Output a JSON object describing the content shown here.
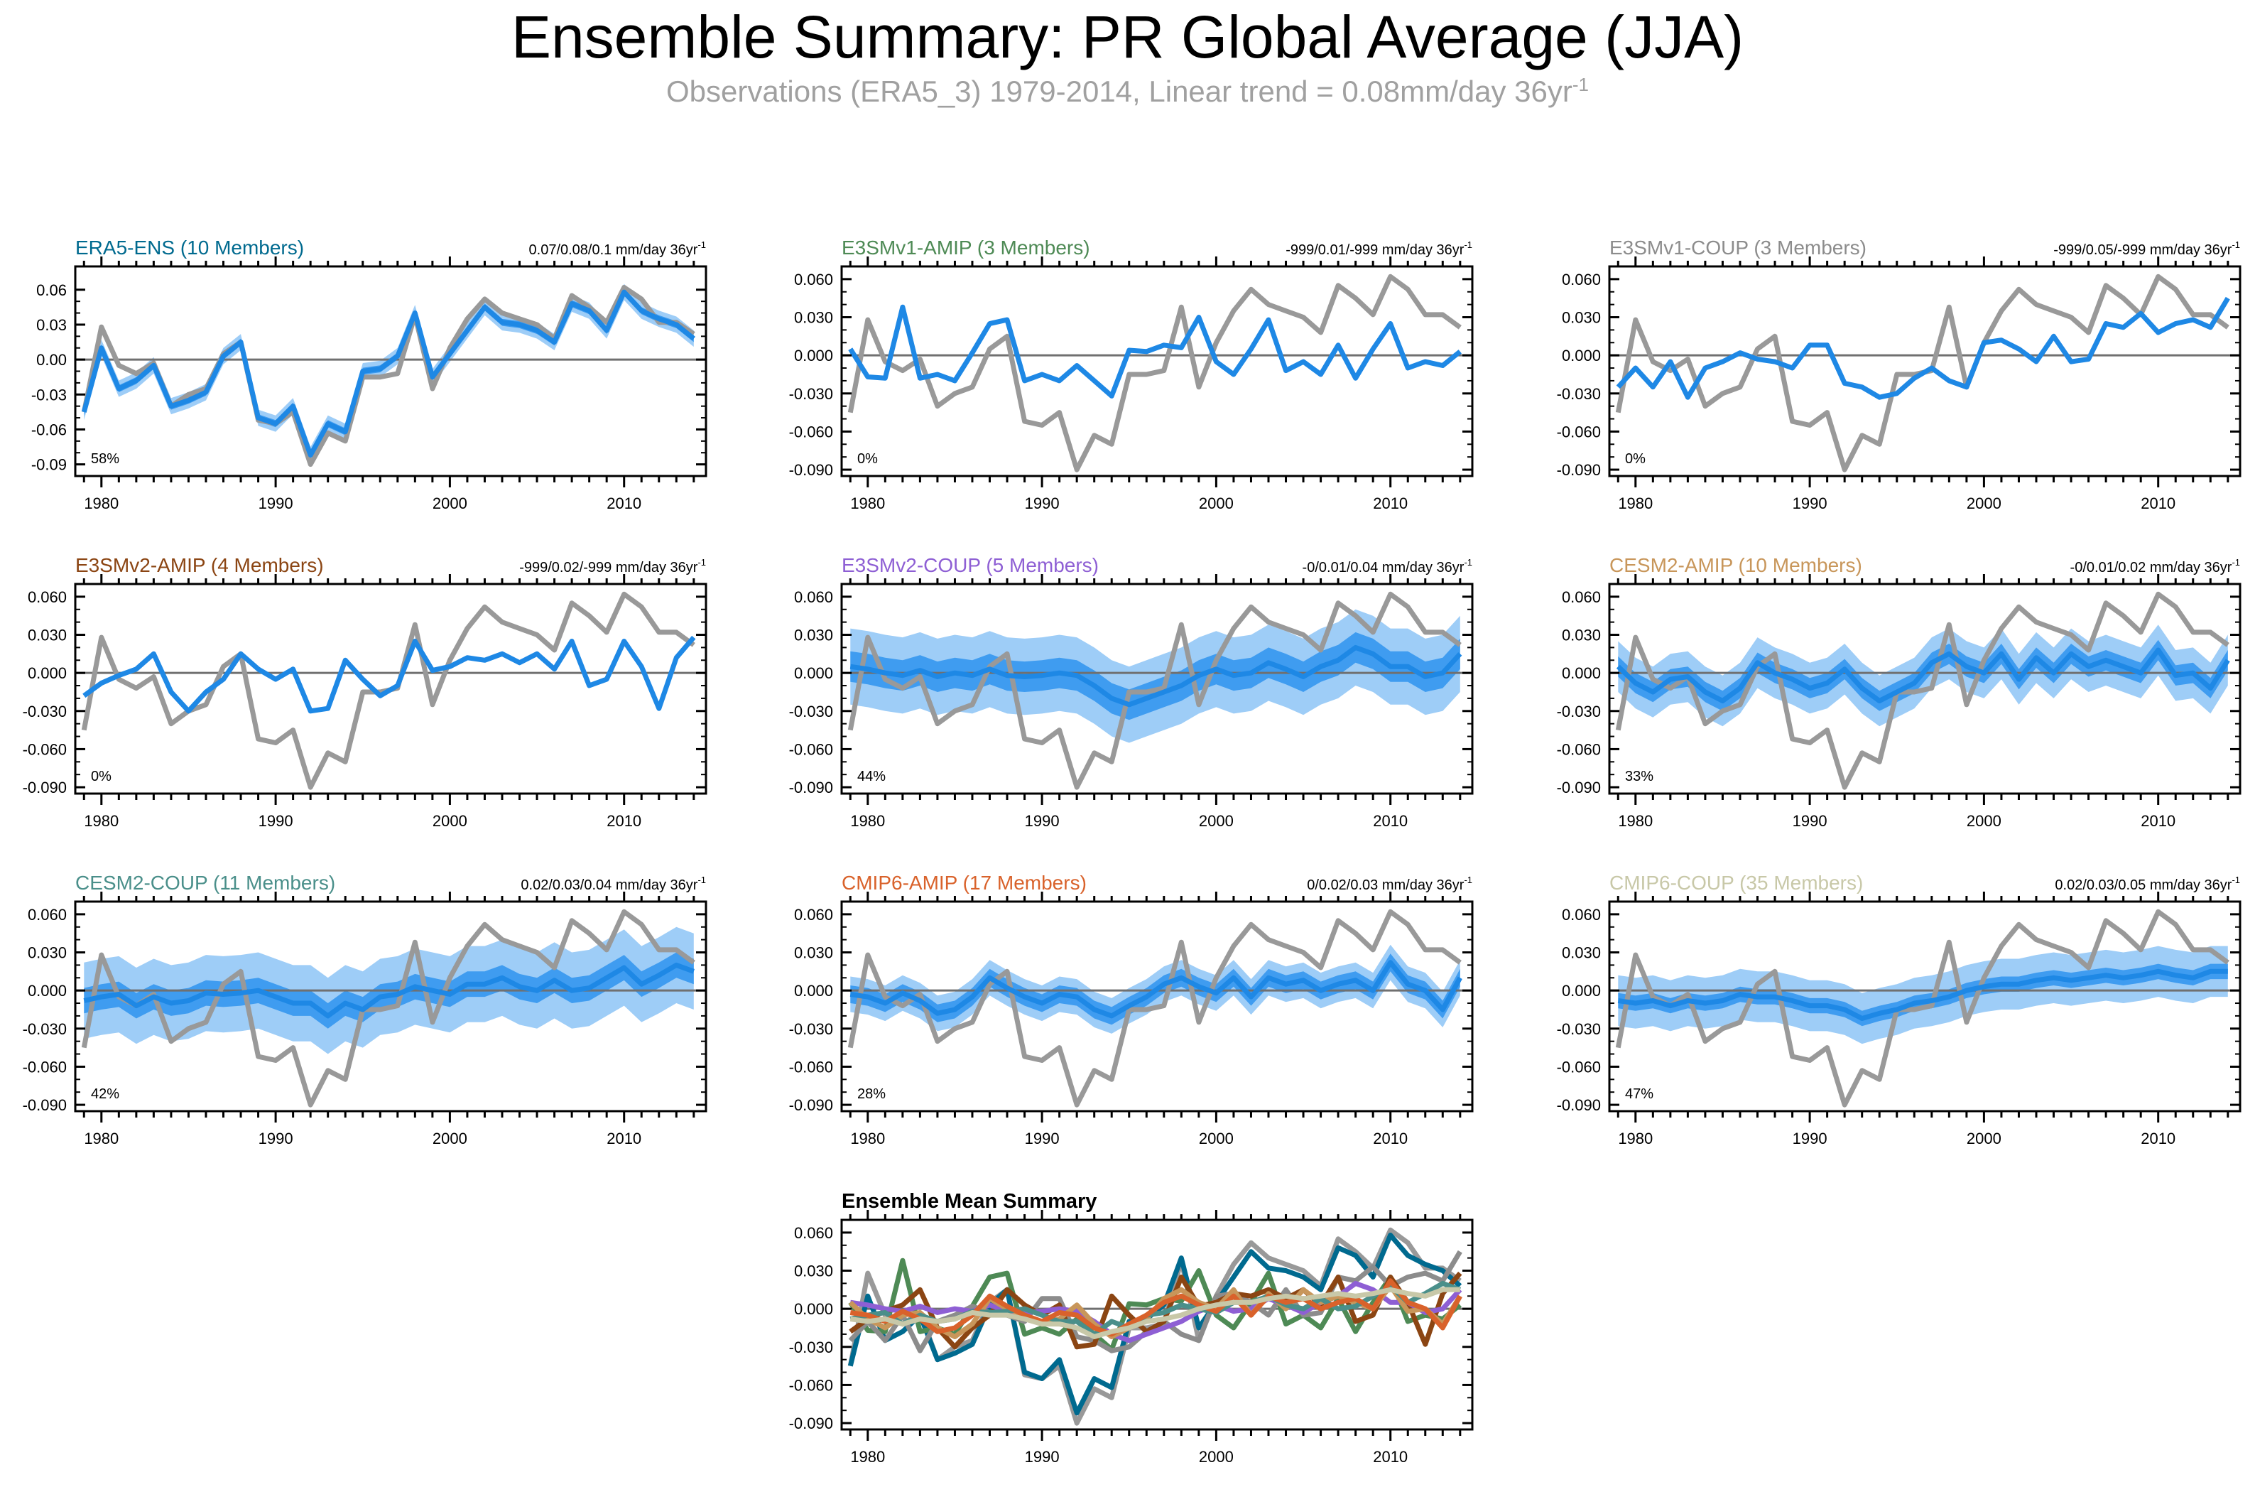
{
  "title": "Ensemble Summary: PR Global Average (JJA)",
  "subtitle": {
    "main": "Observations (ERA5_3) 1979-2014, Linear trend = 0.08mm/day 36yr",
    "exponent": "-1"
  },
  "colors": {
    "obs": "#999999",
    "ensemble_mean": "#1e88e5",
    "inner_band": "#3f9cf0",
    "outer_band": "#9ecdf7",
    "zero_line": "#707070"
  },
  "chart_data": [
    {
      "type": "line",
      "name": "ERA5-ENS (10 Members)",
      "title_color": "#006a8f",
      "trend": "0.07/0.08/0.1 mm/day 36yr",
      "trend_exp": "-1",
      "percent": "58%",
      "ylim": [
        -0.1,
        0.08
      ],
      "yticks": [
        "0.06",
        "0.03",
        "0.00",
        "-0.03",
        "-0.06",
        "-0.09"
      ],
      "ytick_values": [
        0.06,
        0.03,
        0.0,
        -0.03,
        -0.06,
        -0.09
      ],
      "xlim": [
        1978.5,
        2014.7
      ],
      "xticks": [
        "1980",
        "1990",
        "2000",
        "2010"
      ],
      "mean": [
        -0.045,
        0.01,
        -0.025,
        -0.018,
        -0.005,
        -0.04,
        -0.035,
        -0.028,
        0.003,
        0.015,
        -0.05,
        -0.055,
        -0.04,
        -0.082,
        -0.055,
        -0.062,
        -0.01,
        -0.008,
        0.003,
        0.04,
        -0.015,
        0.005,
        0.025,
        0.045,
        0.032,
        0.03,
        0.025,
        0.015,
        0.048,
        0.042,
        0.025,
        0.058,
        0.042,
        0.035,
        0.03,
        0.018
      ],
      "band_inner": 0.003,
      "band_outer": 0.007
    },
    {
      "type": "line",
      "name": "E3SMv1-AMIP (3 Members)",
      "title_color": "#4e8a55",
      "trend": "-999/0.01/-999 mm/day 36yr",
      "trend_exp": "-1",
      "percent": "0%",
      "ylim": [
        -0.095,
        0.07
      ],
      "yticks": [
        "0.060",
        "0.030",
        "0.000",
        "-0.030",
        "-0.060",
        "-0.090"
      ],
      "ytick_values": [
        0.06,
        0.03,
        0.0,
        -0.03,
        -0.06,
        -0.09
      ],
      "xlim": [
        1978.5,
        2014.7
      ],
      "xticks": [
        "1980",
        "1990",
        "2000",
        "2010"
      ],
      "mean": [
        0.005,
        -0.017,
        -0.018,
        0.038,
        -0.018,
        -0.015,
        -0.02,
        0.002,
        0.025,
        0.028,
        -0.02,
        -0.015,
        -0.02,
        -0.008,
        -0.02,
        -0.032,
        0.004,
        0.003,
        0.008,
        0.006,
        0.03,
        -0.005,
        -0.015,
        0.005,
        0.028,
        -0.012,
        -0.005,
        -0.015,
        0.008,
        -0.018,
        0.005,
        0.025,
        -0.01,
        -0.005,
        -0.008,
        0.003
      ],
      "band_inner": 0,
      "band_outer": 0
    },
    {
      "type": "line",
      "name": "E3SMv1-COUP (3 Members)",
      "title_color": "#8c8c8c",
      "trend": "-999/0.05/-999 mm/day 36yr",
      "trend_exp": "-1",
      "percent": "0%",
      "ylim": [
        -0.095,
        0.07
      ],
      "yticks": [
        "0.060",
        "0.030",
        "0.000",
        "-0.030",
        "-0.060",
        "-0.090"
      ],
      "ytick_values": [
        0.06,
        0.03,
        0.0,
        -0.03,
        -0.06,
        -0.09
      ],
      "xlim": [
        1978.5,
        2014.7
      ],
      "xticks": [
        "1980",
        "1990",
        "2000",
        "2010"
      ],
      "mean": [
        -0.025,
        -0.01,
        -0.025,
        -0.005,
        -0.033,
        -0.01,
        -0.005,
        0.002,
        -0.003,
        -0.005,
        -0.01,
        0.008,
        0.008,
        -0.022,
        -0.025,
        -0.033,
        -0.03,
        -0.018,
        -0.01,
        -0.02,
        -0.025,
        0.01,
        0.012,
        0.005,
        -0.005,
        0.015,
        -0.005,
        -0.003,
        0.025,
        0.022,
        0.033,
        0.018,
        0.025,
        0.028,
        0.022,
        0.045
      ],
      "band_inner": 0,
      "band_outer": 0
    },
    {
      "type": "line",
      "name": "E3SMv2-AMIP (4 Members)",
      "title_color": "#8b4513",
      "trend": "-999/0.02/-999 mm/day 36yr",
      "trend_exp": "-1",
      "percent": "0%",
      "ylim": [
        -0.095,
        0.07
      ],
      "yticks": [
        "0.060",
        "0.030",
        "0.000",
        "-0.030",
        "-0.060",
        "-0.090"
      ],
      "ytick_values": [
        0.06,
        0.03,
        0.0,
        -0.03,
        -0.06,
        -0.09
      ],
      "xlim": [
        1978.5,
        2014.7
      ],
      "xticks": [
        "1980",
        "1990",
        "2000",
        "2010"
      ],
      "mean": [
        -0.018,
        -0.008,
        -0.002,
        0.003,
        0.015,
        -0.015,
        -0.03,
        -0.015,
        -0.005,
        0.015,
        0.003,
        -0.005,
        0.003,
        -0.03,
        -0.028,
        0.01,
        -0.005,
        -0.018,
        -0.01,
        0.025,
        0.002,
        0.005,
        0.012,
        0.01,
        0.015,
        0.008,
        0.015,
        0.003,
        0.025,
        -0.01,
        -0.005,
        0.025,
        0.005,
        -0.028,
        0.012,
        0.028
      ],
      "band_inner": 0,
      "band_outer": 0
    },
    {
      "type": "line",
      "name": "E3SMv2-COUP (5 Members)",
      "title_color": "#8e5fd4",
      "trend": "-0/0.01/0.04 mm/day 36yr",
      "trend_exp": "-1",
      "percent": "44%",
      "ylim": [
        -0.095,
        0.07
      ],
      "yticks": [
        "0.060",
        "0.030",
        "0.000",
        "-0.030",
        "-0.060",
        "-0.090"
      ],
      "ytick_values": [
        0.06,
        0.03,
        0.0,
        -0.03,
        -0.06,
        -0.09
      ],
      "xlim": [
        1978.5,
        2014.7
      ],
      "xticks": [
        "1980",
        "1990",
        "2000",
        "2010"
      ],
      "mean": [
        0.005,
        0.003,
        0.0,
        -0.002,
        0.002,
        -0.003,
        0.0,
        -0.002,
        0.003,
        -0.002,
        -0.003,
        -0.002,
        0.0,
        -0.002,
        -0.01,
        -0.02,
        -0.025,
        -0.02,
        -0.015,
        -0.01,
        -0.002,
        0.003,
        -0.002,
        0.0,
        0.008,
        0.003,
        -0.003,
        0.005,
        0.01,
        0.02,
        0.015,
        0.005,
        0.005,
        -0.003,
        0.0,
        0.015
      ],
      "band_inner": 0.012,
      "band_outer": 0.03
    },
    {
      "type": "line",
      "name": "CESM2-AMIP (10 Members)",
      "title_color": "#c8965a",
      "trend": "-0/0.01/0.02 mm/day 36yr",
      "trend_exp": "-1",
      "percent": "33%",
      "ylim": [
        -0.095,
        0.07
      ],
      "yticks": [
        "0.060",
        "0.030",
        "0.000",
        "-0.030",
        "-0.060",
        "-0.090"
      ],
      "ytick_values": [
        0.06,
        0.03,
        0.0,
        -0.03,
        -0.06,
        -0.09
      ],
      "xlim": [
        1978.5,
        2014.7
      ],
      "xticks": [
        "1980",
        "1990",
        "2000",
        "2010"
      ],
      "mean": [
        0.005,
        -0.008,
        -0.015,
        -0.005,
        -0.003,
        -0.015,
        -0.022,
        -0.012,
        0.008,
        0.0,
        -0.005,
        -0.012,
        -0.008,
        0.003,
        -0.012,
        -0.022,
        -0.015,
        -0.008,
        0.008,
        0.015,
        0.005,
        0.0,
        0.015,
        -0.005,
        0.012,
        0.0,
        0.015,
        0.005,
        0.01,
        0.005,
        0.0,
        0.018,
        -0.002,
        0.0,
        -0.012,
        0.01
      ],
      "band_inner": 0.008,
      "band_outer": 0.02
    },
    {
      "type": "line",
      "name": "CESM2-COUP (11 Members)",
      "title_color": "#4a8f8a",
      "trend": "0.02/0.03/0.04 mm/day 36yr",
      "trend_exp": "-1",
      "percent": "42%",
      "ylim": [
        -0.095,
        0.07
      ],
      "yticks": [
        "0.060",
        "0.030",
        "0.000",
        "-0.030",
        "-0.060",
        "-0.090"
      ],
      "ytick_values": [
        0.06,
        0.03,
        0.0,
        -0.03,
        -0.06,
        -0.09
      ],
      "xlim": [
        1978.5,
        2014.7
      ],
      "xticks": [
        "1980",
        "1990",
        "2000",
        "2010"
      ],
      "mean": [
        -0.008,
        -0.005,
        -0.003,
        -0.012,
        -0.005,
        -0.01,
        -0.008,
        -0.002,
        -0.003,
        -0.002,
        0.0,
        -0.005,
        -0.01,
        -0.01,
        -0.02,
        -0.01,
        -0.015,
        -0.005,
        -0.003,
        0.003,
        0.0,
        -0.003,
        0.005,
        0.005,
        0.01,
        0.003,
        0.0,
        0.008,
        0.0,
        0.002,
        0.01,
        0.018,
        0.005,
        0.012,
        0.02,
        0.015
      ],
      "band_inner": 0.01,
      "band_outer": 0.03
    },
    {
      "type": "line",
      "name": "CMIP6-AMIP (17 Members)",
      "title_color": "#d9622b",
      "trend": "0/0.02/0.03 mm/day 36yr",
      "trend_exp": "-1",
      "percent": "28%",
      "ylim": [
        -0.095,
        0.07
      ],
      "yticks": [
        "0.060",
        "0.030",
        "0.000",
        "-0.030",
        "-0.060",
        "-0.090"
      ],
      "ytick_values": [
        0.06,
        0.03,
        0.0,
        -0.03,
        -0.06,
        -0.09
      ],
      "xlim": [
        1978.5,
        2014.7
      ],
      "xticks": [
        "1980",
        "1990",
        "2000",
        "2010"
      ],
      "mean": [
        -0.003,
        -0.005,
        -0.01,
        -0.002,
        -0.008,
        -0.018,
        -0.015,
        -0.005,
        0.01,
        0.002,
        -0.005,
        -0.01,
        -0.003,
        -0.005,
        -0.015,
        -0.02,
        -0.012,
        -0.005,
        0.005,
        0.01,
        0.003,
        -0.002,
        0.01,
        -0.005,
        0.01,
        0.005,
        0.008,
        0.0,
        0.005,
        0.008,
        0.0,
        0.022,
        0.005,
        0.0,
        -0.015,
        0.01
      ],
      "band_inner": 0.007,
      "band_outer": 0.014
    },
    {
      "type": "line",
      "name": "CMIP6-COUP (35 Members)",
      "title_color": "#c8c8a8",
      "trend": "0.02/0.03/0.05 mm/day 36yr",
      "trend_exp": "-1",
      "percent": "47%",
      "ylim": [
        -0.095,
        0.07
      ],
      "yticks": [
        "0.060",
        "0.030",
        "0.000",
        "-0.030",
        "-0.060",
        "-0.090"
      ],
      "ytick_values": [
        0.06,
        0.03,
        0.0,
        -0.03,
        -0.06,
        -0.09
      ],
      "xlim": [
        1978.5,
        2014.7
      ],
      "xticks": [
        "1980",
        "1990",
        "2000",
        "2010"
      ],
      "mean": [
        -0.008,
        -0.01,
        -0.008,
        -0.012,
        -0.008,
        -0.01,
        -0.008,
        -0.003,
        -0.005,
        -0.005,
        -0.008,
        -0.012,
        -0.012,
        -0.015,
        -0.022,
        -0.018,
        -0.015,
        -0.01,
        -0.008,
        -0.005,
        0.0,
        0.003,
        0.005,
        0.005,
        0.008,
        0.01,
        0.008,
        0.01,
        0.012,
        0.01,
        0.012,
        0.015,
        0.012,
        0.01,
        0.015,
        0.015
      ],
      "band_inner": 0.006,
      "band_outer": 0.02
    },
    {
      "type": "line",
      "name": "Ensemble Mean Summary",
      "title_color": "#000000",
      "trend": "",
      "trend_exp": "",
      "percent": "",
      "ylim": [
        -0.095,
        0.07
      ],
      "yticks": [
        "0.060",
        "0.030",
        "0.000",
        "-0.030",
        "-0.060",
        "-0.090"
      ],
      "ytick_values": [
        0.06,
        0.03,
        0.0,
        -0.03,
        -0.06,
        -0.09
      ],
      "xlim": [
        1978.5,
        2014.7
      ],
      "xticks": [
        "1980",
        "1990",
        "2000",
        "2010"
      ],
      "summary": true
    }
  ],
  "observations": {
    "name": "ERA5_3",
    "start_year": 1979,
    "values": [
      -0.045,
      0.028,
      -0.005,
      -0.012,
      -0.003,
      -0.04,
      -0.03,
      -0.025,
      0.005,
      0.015,
      -0.052,
      -0.055,
      -0.045,
      -0.09,
      -0.063,
      -0.07,
      -0.015,
      -0.015,
      -0.012,
      0.038,
      -0.025,
      0.01,
      0.035,
      0.052,
      0.04,
      0.035,
      0.03,
      0.018,
      0.055,
      0.045,
      0.032,
      0.062,
      0.052,
      0.032,
      0.032,
      0.022
    ]
  }
}
